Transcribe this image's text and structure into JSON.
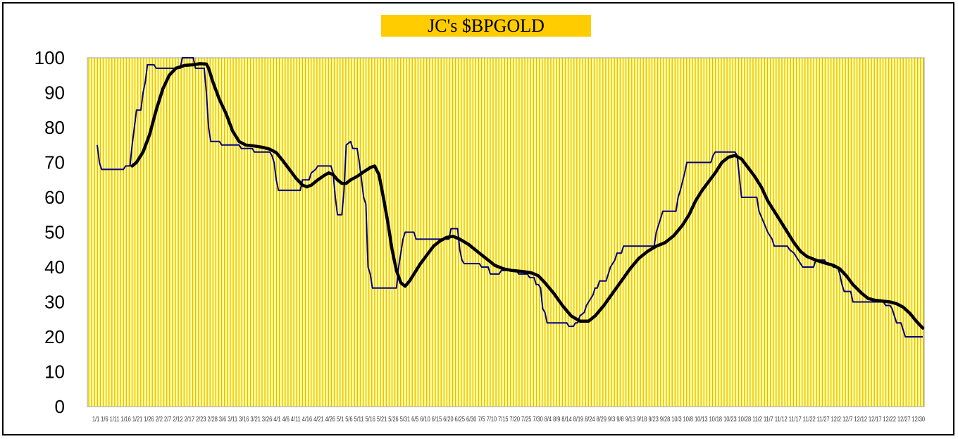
{
  "chart_data": {
    "type": "line",
    "title": "JC's $BPGOLD",
    "xlabel": "",
    "ylabel": "",
    "ylim": [
      0,
      100
    ],
    "yticks": [
      "0",
      "10",
      "20",
      "30",
      "40",
      "50",
      "60",
      "70",
      "80",
      "90",
      "100"
    ],
    "grid": true,
    "legend": "none",
    "x_tick_text": "1/1 1/6 1/11 1/16 1/21 1/26 2/2 2/7 2/12 2/17 2/23 2/28 3/6 3/11 3/16 3/21 3/26 4/1 4/6 4/11 4/16 4/21 4/26 5/1 5/6 5/11 5/16 5/21 5/26 5/31 6/5 6/10 6/15 6/20 6/25 6/30 7/5 7/10 7/15 7/20 7/25 7/30 8/4 8/9 8/14 8/19 8/24 8/29 9/3 9/8 9/13 9/18 9/23 9/28 10/3 10/8 10/13 10/18 10/23 10/28 11/2 11/7 11/12 11/17 11/22 11/27 12/2 12/7 12/12 12/17 12/22 12/27 12/30",
    "colors": {
      "plot_bg": "#ffff99",
      "gridlines": "#e8b800",
      "series_1": "#00007f",
      "series_2": "#000000",
      "title_bg": "#ffcc00"
    },
    "series": [
      {
        "style": "thin-step",
        "points": [
          [
            0,
            75
          ],
          [
            1,
            70
          ],
          [
            2,
            68
          ],
          [
            12,
            68
          ],
          [
            13,
            69
          ],
          [
            15,
            69
          ],
          [
            16,
            75
          ],
          [
            17,
            80
          ],
          [
            18,
            85
          ],
          [
            20,
            85
          ],
          [
            21,
            90
          ],
          [
            22,
            93
          ],
          [
            23,
            98
          ],
          [
            26,
            98
          ],
          [
            27,
            97
          ],
          [
            38,
            97
          ],
          [
            39,
            100
          ],
          [
            44,
            100
          ],
          [
            45,
            97
          ],
          [
            49,
            97
          ],
          [
            50,
            90
          ],
          [
            51,
            80
          ],
          [
            52,
            76
          ],
          [
            56,
            76
          ],
          [
            57,
            75
          ],
          [
            65,
            75
          ],
          [
            66,
            74
          ],
          [
            71,
            74
          ],
          [
            72,
            73
          ],
          [
            79,
            73
          ],
          [
            80,
            72
          ],
          [
            81,
            70
          ],
          [
            82,
            65
          ],
          [
            83,
            62
          ],
          [
            93,
            62
          ],
          [
            94,
            65
          ],
          [
            97,
            65
          ],
          [
            98,
            67
          ],
          [
            100,
            68
          ],
          [
            101,
            69
          ],
          [
            107,
            69
          ],
          [
            108,
            67
          ],
          [
            109,
            60
          ],
          [
            110,
            55
          ],
          [
            112,
            55
          ],
          [
            113,
            62
          ],
          [
            114,
            75
          ],
          [
            116,
            76
          ],
          [
            117,
            74
          ],
          [
            119,
            74
          ],
          [
            120,
            70
          ],
          [
            121,
            65
          ],
          [
            122,
            60
          ],
          [
            123,
            58
          ],
          [
            124,
            40
          ],
          [
            125,
            38
          ],
          [
            126,
            34
          ],
          [
            135,
            34
          ],
          [
            137,
            34
          ],
          [
            138,
            40
          ],
          [
            140,
            48
          ],
          [
            141,
            50
          ],
          [
            145,
            50
          ],
          [
            146,
            48
          ],
          [
            161,
            48
          ],
          [
            162,
            51
          ],
          [
            165,
            51
          ],
          [
            166,
            45
          ],
          [
            167,
            42
          ],
          [
            168,
            41
          ],
          [
            175,
            41
          ],
          [
            176,
            40
          ],
          [
            179,
            40
          ],
          [
            180,
            38
          ],
          [
            184,
            38
          ],
          [
            185,
            39
          ],
          [
            189,
            39
          ],
          [
            192,
            39
          ],
          [
            193,
            38
          ],
          [
            197,
            38
          ],
          [
            198,
            37
          ],
          [
            200,
            37
          ],
          [
            201,
            35
          ],
          [
            202,
            35
          ],
          [
            203,
            34
          ],
          [
            204,
            28
          ],
          [
            205,
            27
          ],
          [
            206,
            24
          ],
          [
            215,
            24
          ],
          [
            216,
            23
          ],
          [
            218,
            23
          ],
          [
            219,
            24
          ],
          [
            220,
            24
          ],
          [
            221,
            26
          ],
          [
            223,
            27
          ],
          [
            224,
            29
          ],
          [
            225,
            30
          ],
          [
            227,
            32
          ],
          [
            228,
            34
          ],
          [
            229,
            34
          ],
          [
            230,
            36
          ],
          [
            233,
            36
          ],
          [
            234,
            38
          ],
          [
            235,
            40
          ],
          [
            237,
            42
          ],
          [
            238,
            44
          ],
          [
            240,
            44
          ],
          [
            241,
            46
          ],
          [
            255,
            46
          ],
          [
            256,
            50
          ],
          [
            257,
            52
          ],
          [
            259,
            56
          ],
          [
            265,
            56
          ],
          [
            266,
            60
          ],
          [
            267,
            62
          ],
          [
            269,
            67
          ],
          [
            270,
            70
          ],
          [
            281,
            70
          ],
          [
            282,
            72
          ],
          [
            283,
            73
          ],
          [
            292,
            73
          ],
          [
            293,
            72
          ],
          [
            294,
            66
          ],
          [
            295,
            60
          ],
          [
            302,
            60
          ],
          [
            303,
            56
          ],
          [
            305,
            53
          ],
          [
            307,
            50
          ],
          [
            309,
            48
          ],
          [
            310,
            46
          ],
          [
            316,
            46
          ],
          [
            317,
            45
          ],
          [
            319,
            44
          ],
          [
            321,
            42
          ],
          [
            323,
            40
          ],
          [
            328,
            40
          ],
          [
            329,
            42
          ],
          [
            333,
            42
          ],
          [
            334,
            41
          ],
          [
            336,
            41
          ],
          [
            337,
            40
          ],
          [
            339,
            40
          ],
          [
            340,
            38
          ],
          [
            341,
            35
          ],
          [
            342,
            33
          ],
          [
            345,
            33
          ],
          [
            346,
            30
          ],
          [
            358,
            30
          ],
          [
            360,
            30
          ],
          [
            361,
            29
          ],
          [
            363,
            29
          ],
          [
            364,
            28
          ],
          [
            365,
            26
          ],
          [
            366,
            24
          ],
          [
            368,
            24
          ],
          [
            369,
            22
          ],
          [
            370,
            20
          ],
          [
            378,
            20
          ]
        ]
      },
      {
        "style": "thick-smooth",
        "points": [
          [
            16,
            69
          ],
          [
            18,
            70
          ],
          [
            21,
            73
          ],
          [
            24,
            78
          ],
          [
            27,
            85
          ],
          [
            30,
            91
          ],
          [
            33,
            95
          ],
          [
            36,
            97
          ],
          [
            40,
            97.8
          ],
          [
            44,
            98
          ],
          [
            47,
            98.3
          ],
          [
            50,
            98.2
          ],
          [
            51,
            97
          ],
          [
            53,
            93
          ],
          [
            56,
            88
          ],
          [
            59,
            84
          ],
          [
            62,
            79
          ],
          [
            65,
            76
          ],
          [
            68,
            75
          ],
          [
            72,
            74.7
          ],
          [
            76,
            74.3
          ],
          [
            79,
            73.8
          ],
          [
            82,
            72.8
          ],
          [
            85,
            70.5
          ],
          [
            88,
            68
          ],
          [
            91,
            65.5
          ],
          [
            94,
            63.5
          ],
          [
            96,
            63
          ],
          [
            98,
            63.5
          ],
          [
            101,
            65
          ],
          [
            104,
            66.3
          ],
          [
            106,
            67
          ],
          [
            108,
            66.5
          ],
          [
            110,
            65
          ],
          [
            112,
            64
          ],
          [
            114,
            64
          ],
          [
            116,
            65
          ],
          [
            119,
            66
          ],
          [
            122,
            67.3
          ],
          [
            125,
            68.5
          ],
          [
            127,
            69
          ],
          [
            129,
            66.5
          ],
          [
            131,
            60
          ],
          [
            133,
            53
          ],
          [
            135,
            45
          ],
          [
            137,
            39
          ],
          [
            139,
            35.5
          ],
          [
            141,
            34.5
          ],
          [
            143,
            36
          ],
          [
            145,
            38
          ],
          [
            148,
            41
          ],
          [
            151,
            43.5
          ],
          [
            154,
            46
          ],
          [
            157,
            47.5
          ],
          [
            160,
            48.5
          ],
          [
            163,
            48.8
          ],
          [
            166,
            48
          ],
          [
            170,
            46.5
          ],
          [
            174,
            44.5
          ],
          [
            178,
            42.5
          ],
          [
            182,
            40.5
          ],
          [
            186,
            39.5
          ],
          [
            190,
            39
          ],
          [
            195,
            38.7
          ],
          [
            199,
            38.3
          ],
          [
            202,
            37.5
          ],
          [
            205,
            35.5
          ],
          [
            209,
            32.5
          ],
          [
            213,
            29
          ],
          [
            217,
            26
          ],
          [
            221,
            24.5
          ],
          [
            225,
            24.5
          ],
          [
            228,
            26
          ],
          [
            232,
            29
          ],
          [
            236,
            32.5
          ],
          [
            240,
            36
          ],
          [
            244,
            39.5
          ],
          [
            248,
            42.5
          ],
          [
            252,
            44.5
          ],
          [
            256,
            46
          ],
          [
            260,
            47
          ],
          [
            264,
            49
          ],
          [
            268,
            52
          ],
          [
            271,
            55
          ],
          [
            274,
            59
          ],
          [
            277,
            62
          ],
          [
            280,
            64.5
          ],
          [
            283,
            67
          ],
          [
            286,
            70
          ],
          [
            289,
            71.5
          ],
          [
            292,
            72
          ],
          [
            295,
            71
          ],
          [
            298,
            68.5
          ],
          [
            301,
            66
          ],
          [
            304,
            63
          ],
          [
            307,
            59
          ],
          [
            310,
            56
          ],
          [
            313,
            53
          ],
          [
            316,
            50
          ],
          [
            319,
            47
          ],
          [
            322,
            44.5
          ],
          [
            325,
            43
          ],
          [
            329,
            42
          ],
          [
            333,
            41.2
          ],
          [
            337,
            40.5
          ],
          [
            340,
            39.5
          ],
          [
            343,
            37.5
          ],
          [
            346,
            35
          ],
          [
            350,
            32.5
          ],
          [
            353,
            31
          ],
          [
            356,
            30.5
          ],
          [
            360,
            30.2
          ],
          [
            363,
            30
          ],
          [
            366,
            29.5
          ],
          [
            369,
            28.5
          ],
          [
            372,
            26.8
          ],
          [
            375,
            24.5
          ],
          [
            378,
            22.5
          ]
        ]
      }
    ]
  }
}
